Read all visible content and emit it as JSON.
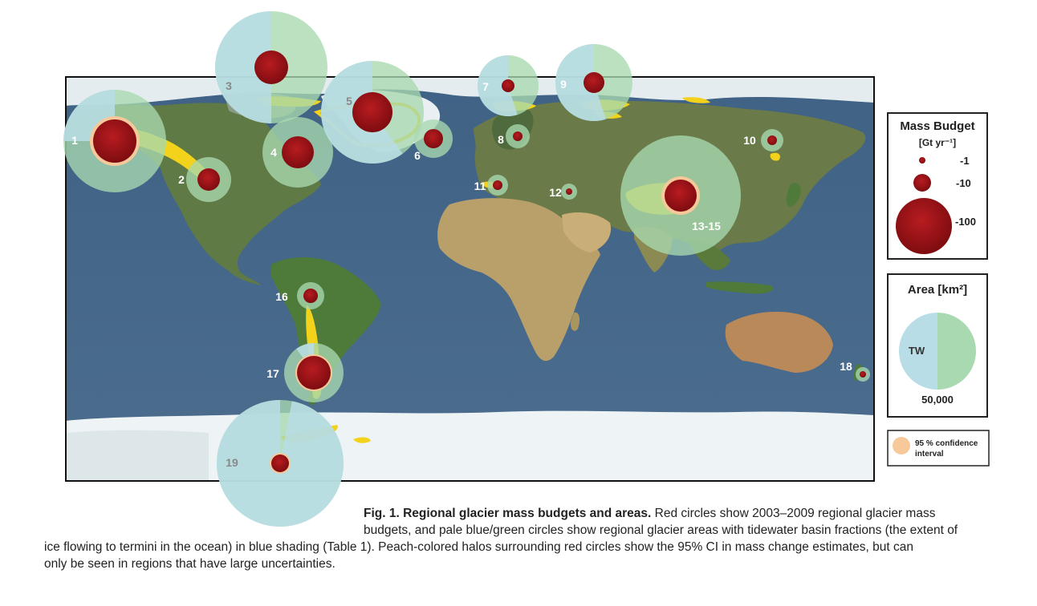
{
  "legend": {
    "mass_title": "Mass Budget",
    "mass_unit": "[Gt yr⁻¹]",
    "mass_values": [
      "-1",
      "-10",
      "-100"
    ],
    "area_title": "Area [km²]",
    "area_tw": "TW",
    "area_value": "50,000",
    "ci_label_line1": "95 % confidence",
    "ci_label_line2": "interval"
  },
  "colors": {
    "ocean": "#4a6a8c",
    "land": "#5f7a45",
    "ice": "#eef3f6",
    "glacier": "#f2d21a",
    "tidewater_blue": "#b9dde6",
    "land_green": "#a8d9b0",
    "mass_red": "#a01418",
    "halo_peach": "#f7c89a"
  },
  "regions": [
    {
      "label": "1",
      "mass": -54,
      "tw_fraction": 0.25
    },
    {
      "label": "2",
      "mass": -12,
      "tw_fraction": 0.0
    },
    {
      "label": "3",
      "mass": -33,
      "tw_fraction": 0.5
    },
    {
      "label": "4",
      "mass": -25,
      "tw_fraction": 0.0
    },
    {
      "label": "5",
      "mass": -38,
      "tw_fraction": 0.6
    },
    {
      "label": "6",
      "mass": -10,
      "tw_fraction": 0.0
    },
    {
      "label": "7",
      "mass": -3,
      "tw_fraction": 0.55
    },
    {
      "label": "8",
      "mass": -2,
      "tw_fraction": 0.0
    },
    {
      "label": "9",
      "mass": -9,
      "tw_fraction": 0.55
    },
    {
      "label": "10",
      "mass": -2,
      "tw_fraction": 0.0
    },
    {
      "label": "11",
      "mass": -2,
      "tw_fraction": 0.0
    },
    {
      "label": "12",
      "mass": -1,
      "tw_fraction": 0.0
    },
    {
      "label": "13-15",
      "mass": -26,
      "tw_fraction": 0.0
    },
    {
      "label": "16",
      "mass": -4,
      "tw_fraction": 0.0
    },
    {
      "label": "17",
      "mass": -29,
      "tw_fraction": 0.1
    },
    {
      "label": "18",
      "mass": -1,
      "tw_fraction": 0.0
    },
    {
      "label": "19",
      "mass": -6,
      "tw_fraction": 0.97
    }
  ],
  "caption": {
    "title": "Fig. 1. Regional glacier mass budgets and areas.",
    "line1": " Red circles show 2003–2009 regional glacier mass",
    "line2": "budgets, and pale blue/green circles show regional glacier areas with tidewater basin fractions (the extent of",
    "line3": "ice flowing to termini in the ocean) in blue shading (Table 1). Peach-colored halos surrounding red circles show the 95% CI in mass change estimates, but can",
    "line4": "only be seen in regions that have large uncertainties."
  }
}
